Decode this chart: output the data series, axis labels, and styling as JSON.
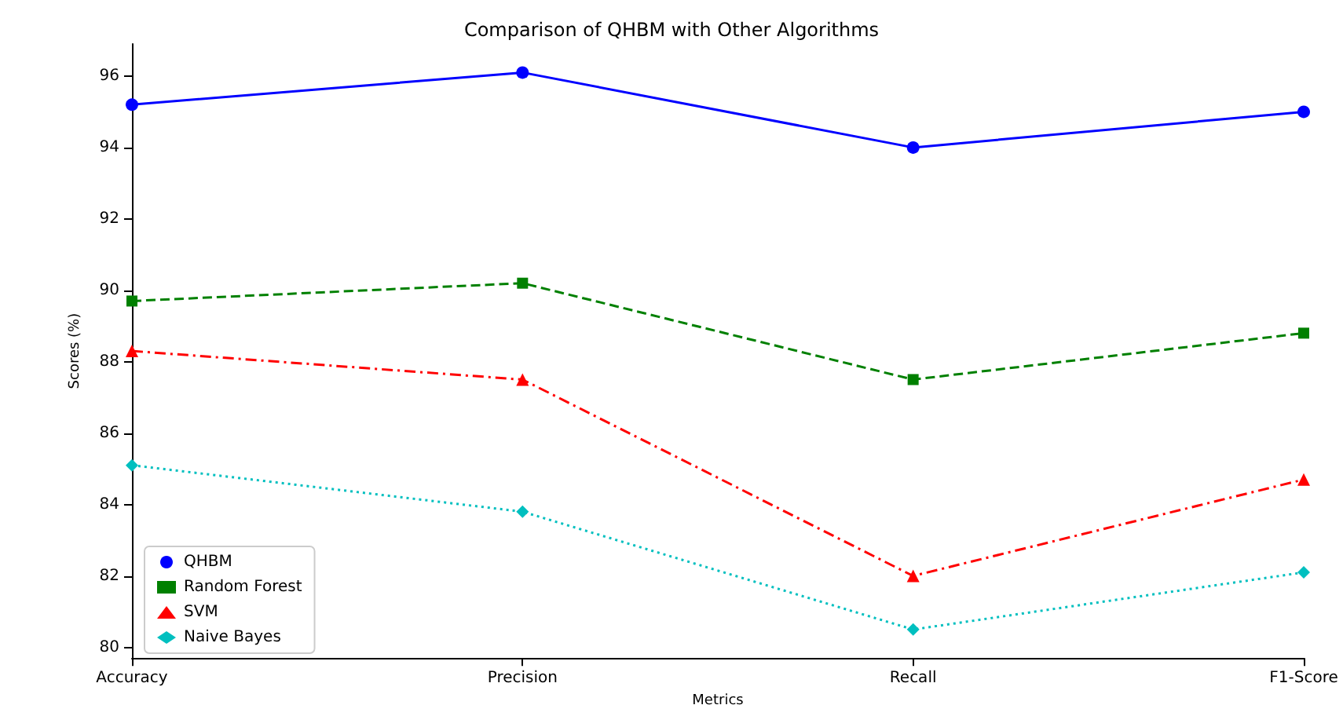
{
  "chart_data": {
    "type": "line",
    "title": "Comparison of QHBM with Other Algorithms",
    "xlabel": "Metrics",
    "ylabel": "Scores (%)",
    "categories": [
      "Accuracy",
      "Precision",
      "Recall",
      "F1-Score"
    ],
    "series": [
      {
        "name": "QHBM",
        "color": "#0000ff",
        "marker": "circle",
        "line_style": "solid",
        "values": [
          95.2,
          96.1,
          94.0,
          95.0
        ]
      },
      {
        "name": "Random Forest",
        "color": "#008000",
        "marker": "square",
        "line_style": "dashed",
        "values": [
          89.7,
          90.2,
          87.5,
          88.8
        ]
      },
      {
        "name": "SVM",
        "color": "#ff0000",
        "marker": "triangle",
        "line_style": "dashdot",
        "values": [
          88.3,
          87.5,
          82.0,
          84.7
        ]
      },
      {
        "name": "Naive Bayes",
        "color": "#00bfbf",
        "marker": "diamond",
        "line_style": "dotted",
        "values": [
          85.1,
          83.8,
          80.5,
          82.1
        ]
      }
    ],
    "ylim": [
      79.7,
      96.9
    ],
    "yticks": [
      80,
      82,
      84,
      86,
      88,
      90,
      92,
      94,
      96
    ],
    "grid": false,
    "legend": "bottom left"
  }
}
